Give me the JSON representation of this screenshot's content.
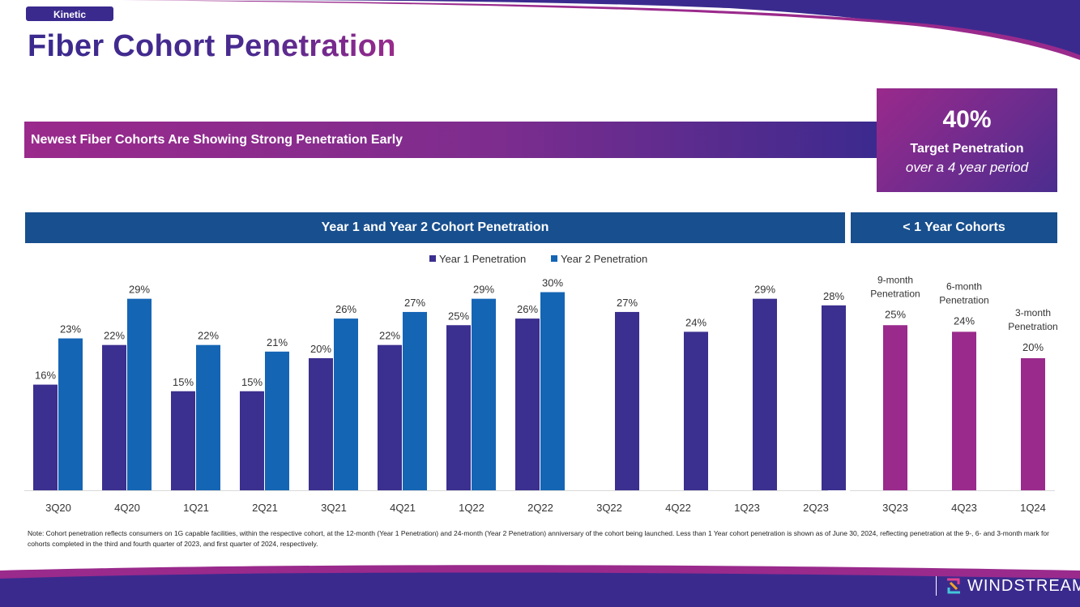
{
  "brand": {
    "badge": "Kinetic",
    "logo_text": "WINDSTREAM"
  },
  "title": "Fiber Cohort Penetration",
  "banner": "Newest Fiber Cohorts Are Showing Strong Penetration Early",
  "target": {
    "value": "40%",
    "label": "Target Penetration",
    "sub": "over a 4 year period"
  },
  "headers": {
    "main": "Year 1 and Year 2 Cohort Penetration",
    "side": "< 1 Year Cohorts"
  },
  "colors": {
    "year1": "#3b2f8f",
    "year2": "#1565b5",
    "side": "#9a2a8c",
    "header": "#184f8e"
  },
  "chart_data": [
    {
      "type": "bar",
      "title": "Year 1 and Year 2 Cohort Penetration",
      "categories": [
        "3Q20",
        "4Q20",
        "1Q21",
        "2Q21",
        "3Q21",
        "4Q21",
        "1Q22",
        "2Q22",
        "3Q22",
        "4Q22",
        "1Q23",
        "2Q23"
      ],
      "series": [
        {
          "name": "Year 1 Penetration",
          "values": [
            16,
            22,
            15,
            15,
            20,
            22,
            25,
            26,
            27,
            24,
            29,
            28
          ],
          "labels": [
            "16%",
            "22%",
            "15%",
            "15%",
            "20%",
            "22%",
            "25%",
            "26%",
            "27%",
            "24%",
            "29%",
            "28%"
          ]
        },
        {
          "name": "Year 2 Penetration",
          "values": [
            23,
            29,
            22,
            21,
            26,
            27,
            29,
            30,
            null,
            null,
            null,
            null
          ],
          "labels": [
            "23%",
            "29%",
            "22%",
            "21%",
            "26%",
            "27%",
            "29%",
            "30%",
            "",
            "",
            "",
            ""
          ]
        }
      ],
      "legend": "top-center",
      "ylim": [
        0,
        35
      ]
    },
    {
      "type": "bar",
      "title": "< 1 Year Cohorts",
      "categories": [
        "3Q23",
        "4Q23",
        "1Q24"
      ],
      "values": [
        25,
        24,
        20
      ],
      "labels": [
        "25%",
        "24%",
        "20%"
      ],
      "annotations": [
        [
          "9-month",
          "Penetration"
        ],
        [
          "6-month",
          "Penetration"
        ],
        [
          "3-month",
          "Penetration"
        ]
      ],
      "ylim": [
        0,
        35
      ]
    }
  ],
  "note": "Note: Cohort penetration reflects consumers on 1G capable facilities, within the respective cohort, at the 12-month (Year 1 Penetration) and 24-month (Year 2 Penetration) anniversary of the cohort being launched. Less than 1 Year cohort penetration is shown as of June 30, 2024, reflecting penetration at the 9-, 6- and 3-month mark for cohorts completed in the third and fourth quarter of 2023, and first quarter of 2024, respectively."
}
